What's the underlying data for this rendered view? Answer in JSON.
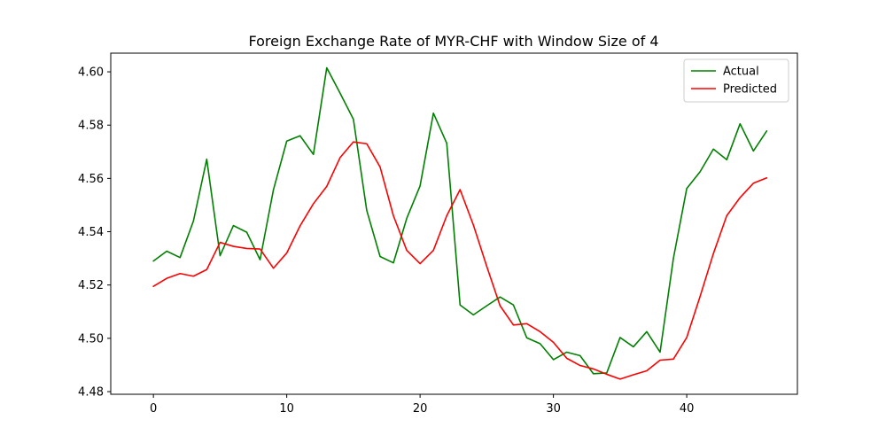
{
  "chart_data": {
    "type": "line",
    "title": "Foreign Exchange Rate of MYR-CHF with Window Size of 4",
    "xlabel": "",
    "ylabel": "",
    "xlim": [
      -3.2,
      48.3
    ],
    "ylim": [
      4.479,
      4.607
    ],
    "xticks": [
      0,
      10,
      20,
      30,
      40
    ],
    "yticks": [
      4.48,
      4.5,
      4.52,
      4.54,
      4.56,
      4.58,
      4.6
    ],
    "ytick_labels": [
      "4.48",
      "4.50",
      "4.52",
      "4.54",
      "4.56",
      "4.58",
      "4.60"
    ],
    "legend_position": "top-right",
    "grid": false,
    "x": [
      0,
      1,
      2,
      3,
      4,
      5,
      6,
      7,
      8,
      9,
      10,
      11,
      12,
      13,
      14,
      15,
      16,
      17,
      18,
      19,
      20,
      21,
      22,
      23,
      24,
      25,
      26,
      27,
      28,
      29,
      30,
      31,
      32,
      33,
      34,
      35,
      36,
      37,
      38,
      39,
      40,
      41,
      42,
      43,
      44,
      45,
      46
    ],
    "series": [
      {
        "name": "Actual",
        "color": "#008000",
        "values": [
          4.529,
          4.5327,
          4.5303,
          4.544,
          4.5672,
          4.531,
          4.5423,
          4.5398,
          4.5295,
          4.5557,
          4.574,
          4.576,
          4.569,
          4.6015,
          4.592,
          4.5822,
          4.548,
          4.5307,
          4.5283,
          4.545,
          4.5572,
          4.5845,
          4.5732,
          4.5125,
          4.5088,
          4.5122,
          4.5155,
          4.5125,
          4.5002,
          4.498,
          4.492,
          4.4948,
          4.4935,
          4.4867,
          4.487,
          4.5003,
          4.4968,
          4.5025,
          4.4948,
          4.53,
          4.5562,
          4.5625,
          4.571,
          4.567,
          4.5805,
          4.5703,
          4.5778
        ]
      },
      {
        "name": "Predicted",
        "color": "#ff0000",
        "values": [
          4.5195,
          4.5225,
          4.5243,
          4.5233,
          4.5258,
          4.536,
          4.5345,
          4.5337,
          4.5335,
          4.5263,
          4.532,
          4.5422,
          4.5505,
          4.557,
          4.5678,
          4.5737,
          4.573,
          4.5643,
          4.546,
          4.533,
          4.528,
          4.533,
          4.546,
          4.5558,
          4.5425,
          4.527,
          4.5122,
          4.505,
          4.5055,
          4.5025,
          4.4985,
          4.4925,
          4.4898,
          4.4885,
          4.4865,
          4.4847,
          4.4863,
          4.4878,
          4.4918,
          4.4922,
          4.5003,
          4.5157,
          4.5318,
          4.546,
          4.5528,
          4.5582,
          4.5602
        ]
      }
    ]
  }
}
